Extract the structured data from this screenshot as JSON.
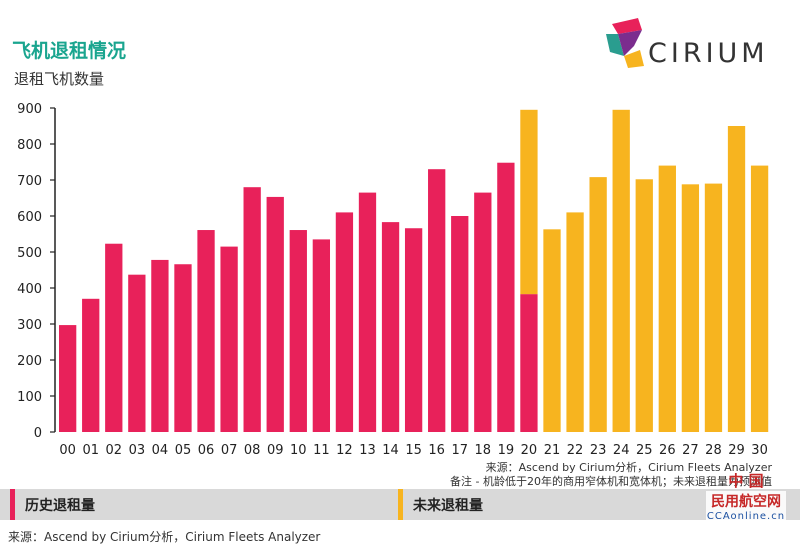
{
  "title": "飞机退租情况",
  "subtitle": "退租飞机数量",
  "logo": {
    "text": "CIRIUM"
  },
  "source_top": "来源：Ascend by Cirium分析，Cirium Fleets Analyzer",
  "note": "备注 - 机龄低于20年的商用窄体机和宽体机；未来退租量为预测值",
  "legend": {
    "historical": "历史退租量",
    "future": "未来退租量"
  },
  "source_bottom": "来源：Ascend by Cirium分析，Cirium Fleets Analyzer",
  "watermark": {
    "line1": "中 国",
    "line2": "民用航空网",
    "line3": "CCAonline.cn"
  },
  "colors": {
    "historical": "#e8215a",
    "future": "#f7b41f",
    "title": "#1aa58f"
  },
  "chart_data": {
    "type": "bar",
    "stacked": true,
    "categories": [
      "00",
      "01",
      "02",
      "03",
      "04",
      "05",
      "06",
      "07",
      "08",
      "09",
      "10",
      "11",
      "12",
      "13",
      "14",
      "15",
      "16",
      "17",
      "18",
      "19",
      "20",
      "21",
      "22",
      "23",
      "24",
      "25",
      "26",
      "27",
      "28",
      "29",
      "30"
    ],
    "series": [
      {
        "name": "历史退租量",
        "color": "#e8215a",
        "values": [
          297,
          370,
          523,
          437,
          478,
          466,
          561,
          515,
          680,
          653,
          561,
          535,
          610,
          665,
          583,
          566,
          730,
          600,
          665,
          748,
          383,
          0,
          0,
          0,
          0,
          0,
          0,
          0,
          0,
          0,
          0
        ]
      },
      {
        "name": "未来退租量",
        "color": "#f7b41f",
        "values": [
          0,
          0,
          0,
          0,
          0,
          0,
          0,
          0,
          0,
          0,
          0,
          0,
          0,
          0,
          0,
          0,
          0,
          0,
          0,
          0,
          512,
          563,
          610,
          708,
          895,
          702,
          740,
          688,
          690,
          850,
          740
        ]
      }
    ],
    "ylim": [
      0,
      900
    ],
    "yticks": [
      0,
      100,
      200,
      300,
      400,
      500,
      600,
      700,
      800,
      900
    ],
    "grid": false
  }
}
